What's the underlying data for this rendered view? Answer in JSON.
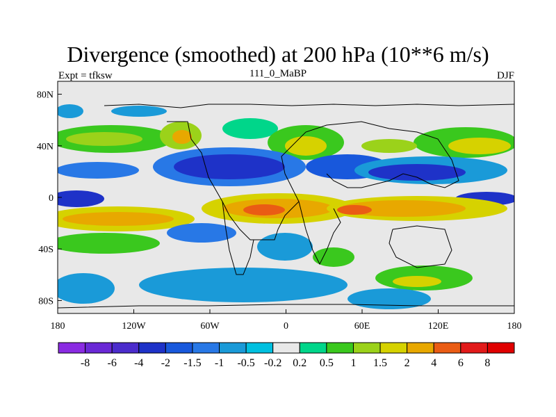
{
  "chart_data": {
    "type": "heatmap",
    "title": "Divergence (smoothed) at 200 hPa (10**6 m/s)",
    "subtitle_left": "Expt = tfksw",
    "subtitle_center": "111_0_MaBP",
    "subtitle_right": "DJF",
    "x_ticks": [
      {
        "value": -180,
        "label": "180"
      },
      {
        "value": -120,
        "label": "120W"
      },
      {
        "value": -60,
        "label": "60W"
      },
      {
        "value": 0,
        "label": "0"
      },
      {
        "value": 60,
        "label": "60E"
      },
      {
        "value": 120,
        "label": "120E"
      },
      {
        "value": 180,
        "label": "180"
      }
    ],
    "y_ticks": [
      {
        "value": 80,
        "label": "80N"
      },
      {
        "value": 40,
        "label": "40N"
      },
      {
        "value": 0,
        "label": "0"
      },
      {
        "value": -40,
        "label": "40S"
      },
      {
        "value": -80,
        "label": "80S"
      }
    ],
    "xlim": [
      -180,
      180
    ],
    "ylim": [
      -90,
      90
    ],
    "colorbar": {
      "boundary_labels": [
        "-8",
        "-6",
        "-4",
        "-2",
        "-1.5",
        "-1",
        "-0.5",
        "-0.2",
        "0.2",
        "0.5",
        "1",
        "1.5",
        "2",
        "4",
        "6",
        "8"
      ],
      "colors": [
        "#8a2be2",
        "#6a28d6",
        "#4b2ccc",
        "#1e32c8",
        "#1858dc",
        "#2878e6",
        "#1a9ad8",
        "#00c0e0",
        "#e8e8e8",
        "#00d68a",
        "#3ac81e",
        "#9bd21a",
        "#d6d200",
        "#e8a800",
        "#ea5c14",
        "#e21a1a",
        "#e00000"
      ]
    }
  }
}
